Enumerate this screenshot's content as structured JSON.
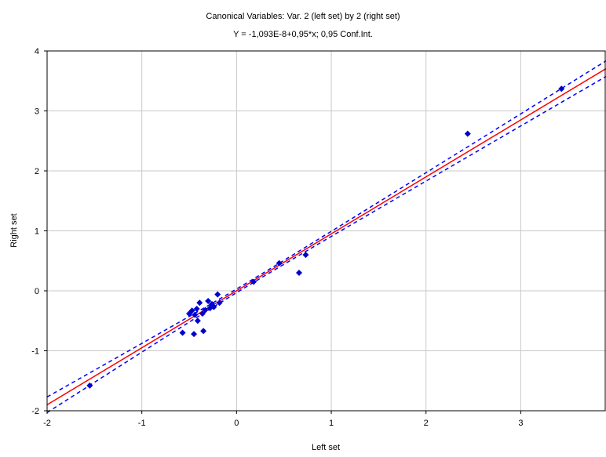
{
  "chart_data": {
    "type": "scatter",
    "title": "Canonical Variables: Var.   2 (left set) by    2 (right set)",
    "subtitle": "Y = -1,093E-8+0,95*x; 0,95 Conf.Int.",
    "xlabel": "Left set",
    "ylabel": "Right set",
    "xlim": [
      -2,
      3.9
    ],
    "ylim": [
      -2,
      4
    ],
    "xticks": [
      -2,
      -1,
      0,
      1,
      2,
      3
    ],
    "yticks": [
      -2,
      -1,
      0,
      1,
      2,
      3,
      4
    ],
    "xtick_labels": [
      "-2",
      "-1",
      "0",
      "1",
      "2",
      "3"
    ],
    "ytick_labels": [
      "-2",
      "-1",
      "0",
      "1",
      "2",
      "3",
      "4"
    ],
    "grid": true,
    "points": [
      {
        "x": -1.55,
        "y": -1.58
      },
      {
        "x": -0.57,
        "y": -0.7
      },
      {
        "x": -0.5,
        "y": -0.38
      },
      {
        "x": -0.47,
        "y": -0.33
      },
      {
        "x": -0.45,
        "y": -0.72
      },
      {
        "x": -0.44,
        "y": -0.4
      },
      {
        "x": -0.42,
        "y": -0.3
      },
      {
        "x": -0.41,
        "y": -0.5
      },
      {
        "x": -0.39,
        "y": -0.2
      },
      {
        "x": -0.36,
        "y": -0.38
      },
      {
        "x": -0.35,
        "y": -0.67
      },
      {
        "x": -0.33,
        "y": -0.32
      },
      {
        "x": -0.3,
        "y": -0.17
      },
      {
        "x": -0.28,
        "y": -0.29
      },
      {
        "x": -0.26,
        "y": -0.22
      },
      {
        "x": -0.24,
        "y": -0.27
      },
      {
        "x": -0.2,
        "y": -0.06
      },
      {
        "x": -0.18,
        "y": -0.2
      },
      {
        "x": 0.18,
        "y": 0.15
      },
      {
        "x": 0.45,
        "y": 0.46
      },
      {
        "x": 0.66,
        "y": 0.3
      },
      {
        "x": 0.73,
        "y": 0.6
      },
      {
        "x": 2.44,
        "y": 2.62
      },
      {
        "x": 3.43,
        "y": 3.37
      }
    ],
    "fit": {
      "intercept": 0,
      "slope": 0.95
    },
    "conf_band": {
      "at_x_min": 0.13,
      "at_x_max": 0.13,
      "at_center": 0.03,
      "center_x": 0.1
    },
    "colors": {
      "points": "#0000cc",
      "fit_line": "#ff0000",
      "conf_band": "#0000ff",
      "grid": "#c8c8c8",
      "axis": "#000000"
    }
  }
}
